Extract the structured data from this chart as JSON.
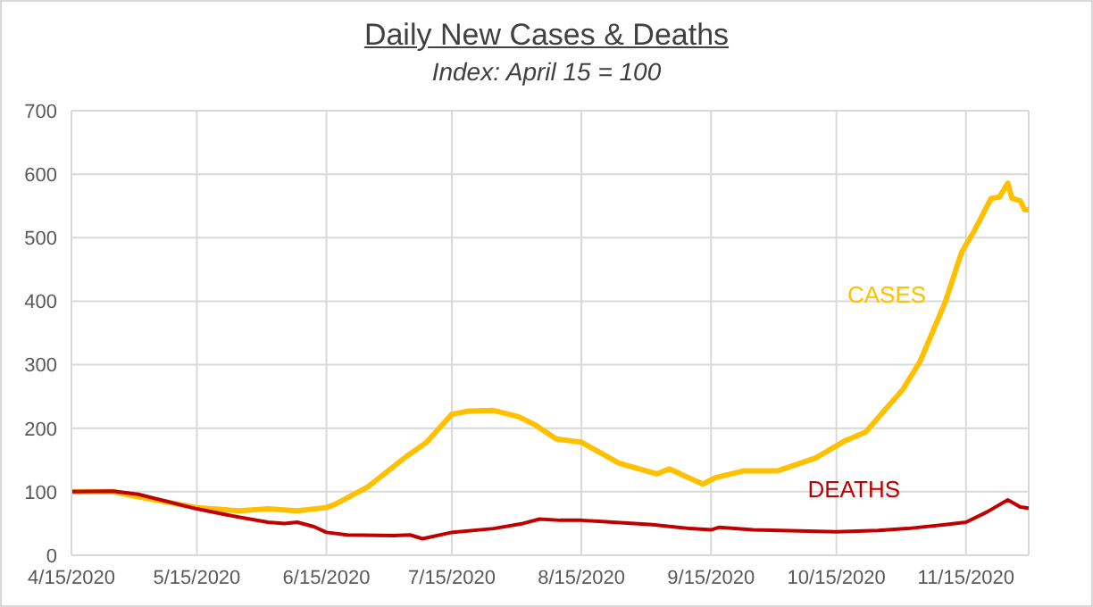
{
  "chart_data": {
    "type": "line",
    "title": "Daily New Cases & Deaths",
    "subtitle": "Index: April 15 = 100",
    "xlim": [
      "2020-04-15",
      "2020-11-30"
    ],
    "xticks": [
      {
        "value": "2020-04-15",
        "label": "4/15/2020"
      },
      {
        "value": "2020-05-15",
        "label": "5/15/2020"
      },
      {
        "value": "2020-06-15",
        "label": "6/15/2020"
      },
      {
        "value": "2020-07-15",
        "label": "7/15/2020"
      },
      {
        "value": "2020-08-15",
        "label": "8/15/2020"
      },
      {
        "value": "2020-09-15",
        "label": "9/15/2020"
      },
      {
        "value": "2020-10-15",
        "label": "10/15/2020"
      },
      {
        "value": "2020-11-15",
        "label": "11/15/2020"
      }
    ],
    "ylim": [
      0,
      700
    ],
    "yticks": [
      0,
      100,
      200,
      300,
      400,
      500,
      600,
      700
    ],
    "grid": true,
    "marker": "none",
    "line_style": "solid",
    "series": [
      {
        "name": "CASES",
        "color": "#ffc000",
        "x": [
          "2020-04-15",
          "2020-04-25",
          "2020-05-01",
          "2020-05-15",
          "2020-05-25",
          "2020-06-01",
          "2020-06-08",
          "2020-06-15",
          "2020-06-17",
          "2020-06-25",
          "2020-07-04",
          "2020-07-09",
          "2020-07-15",
          "2020-07-19",
          "2020-07-25",
          "2020-07-31",
          "2020-08-04",
          "2020-08-09",
          "2020-08-15",
          "2020-08-24",
          "2020-09-02",
          "2020-09-05",
          "2020-09-13",
          "2020-09-16",
          "2020-09-23",
          "2020-10-01",
          "2020-10-10",
          "2020-10-17",
          "2020-10-22",
          "2020-10-31",
          "2020-11-04",
          "2020-11-10",
          "2020-11-14",
          "2020-11-17",
          "2020-11-21",
          "2020-11-23",
          "2020-11-25",
          "2020-11-26",
          "2020-11-28",
          "2020-11-29",
          "2020-11-30"
        ],
        "values": [
          100,
          100,
          92,
          75,
          70,
          73,
          70,
          75,
          80,
          108,
          155,
          178,
          222,
          227,
          228,
          218,
          205,
          183,
          178,
          145,
          128,
          136,
          112,
          122,
          133,
          133,
          153,
          180,
          194,
          262,
          305,
          398,
          478,
          511,
          562,
          564,
          586,
          562,
          558,
          544,
          544
        ]
      },
      {
        "name": "DEATHS",
        "color": "#c00000",
        "x": [
          "2020-04-15",
          "2020-04-25",
          "2020-05-01",
          "2020-05-15",
          "2020-05-25",
          "2020-06-01",
          "2020-06-05",
          "2020-06-08",
          "2020-06-12",
          "2020-06-15",
          "2020-06-20",
          "2020-07-01",
          "2020-07-05",
          "2020-07-08",
          "2020-07-15",
          "2020-07-25",
          "2020-08-01",
          "2020-08-05",
          "2020-08-10",
          "2020-08-15",
          "2020-08-20",
          "2020-09-01",
          "2020-09-10",
          "2020-09-15",
          "2020-09-17",
          "2020-09-25",
          "2020-10-15",
          "2020-10-25",
          "2020-11-01",
          "2020-11-10",
          "2020-11-15",
          "2020-11-20",
          "2020-11-25",
          "2020-11-28",
          "2020-11-30"
        ],
        "values": [
          100,
          101,
          96,
          73,
          60,
          52,
          50,
          52,
          45,
          36,
          32,
          31,
          32,
          26,
          36,
          42,
          50,
          57,
          55,
          55,
          53,
          48,
          42,
          40,
          44,
          40,
          37,
          39,
          42,
          48,
          52,
          68,
          87,
          76,
          74
        ]
      }
    ]
  }
}
